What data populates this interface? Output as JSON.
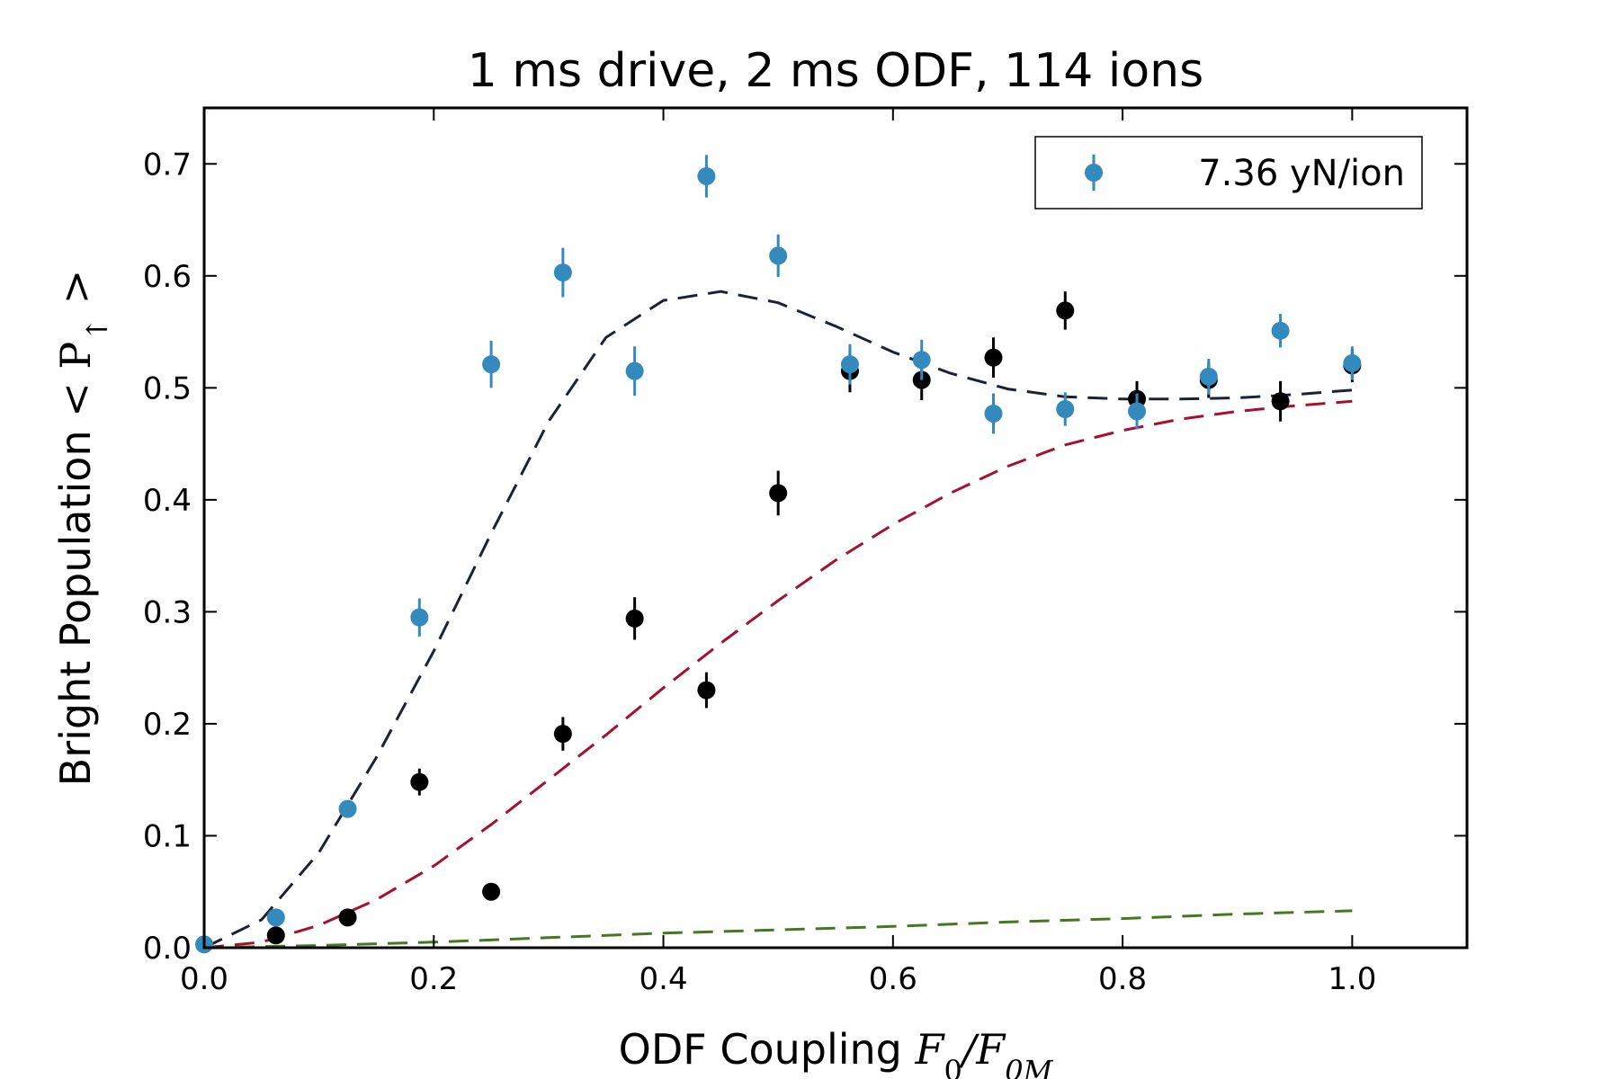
{
  "chart_data": {
    "type": "scatter",
    "title": "1 ms drive, 2 ms ODF, 114 ions",
    "xlabel": "ODF Coupling",
    "xlabel_math": "F0/F0M",
    "ylabel": "Bright Population",
    "ylabel_math": "< P↑ >",
    "xlim": [
      0.0,
      1.1
    ],
    "ylim": [
      0.0,
      0.75
    ],
    "x_ticks": [
      0.0,
      0.2,
      0.4,
      0.6,
      0.8,
      1.0
    ],
    "x_tick_labels": [
      "0.0",
      "0.2",
      "0.4",
      "0.6",
      "0.8",
      "1.0"
    ],
    "y_ticks": [
      0.0,
      0.1,
      0.2,
      0.3,
      0.4,
      0.5,
      0.6,
      0.7
    ],
    "y_tick_labels": [
      "0.0",
      "0.1",
      "0.2",
      "0.3",
      "0.4",
      "0.5",
      "0.6",
      "0.7"
    ],
    "grid": false,
    "legend_position": "top-right",
    "legend_label": "7.36 yN/ion",
    "series": [
      {
        "name": "7.36 yN/ion",
        "kind": "errorbar",
        "color": "#348abd",
        "x": [
          0.0,
          0.0625,
          0.125,
          0.1875,
          0.25,
          0.3125,
          0.375,
          0.4375,
          0.5,
          0.5625,
          0.625,
          0.6875,
          0.75,
          0.8125,
          0.875,
          0.9375,
          1.0
        ],
        "y": [
          0.003,
          0.027,
          0.124,
          0.295,
          0.521,
          0.603,
          0.515,
          0.689,
          0.618,
          0.521,
          0.525,
          0.477,
          0.481,
          0.479,
          0.51,
          0.551,
          0.522
        ],
        "yerr": [
          0.0,
          0.0,
          0.0,
          0.017,
          0.021,
          0.022,
          0.022,
          0.019,
          0.019,
          0.018,
          0.018,
          0.018,
          0.015,
          0.016,
          0.016,
          0.015,
          0.015
        ]
      },
      {
        "kind": "errorbar",
        "color": "#000000",
        "x": [
          0.0625,
          0.125,
          0.1875,
          0.25,
          0.3125,
          0.375,
          0.4375,
          0.5,
          0.5625,
          0.625,
          0.6875,
          0.75,
          0.8125,
          0.875,
          0.9375,
          1.0
        ],
        "y": [
          0.011,
          0.027,
          0.148,
          0.05,
          0.191,
          0.294,
          0.23,
          0.406,
          0.515,
          0.507,
          0.527,
          0.569,
          0.49,
          0.507,
          0.488,
          0.52
        ],
        "yerr": [
          0.0,
          0.0,
          0.012,
          0.0,
          0.015,
          0.019,
          0.016,
          0.02,
          0.019,
          0.018,
          0.018,
          0.017,
          0.016,
          0.016,
          0.018,
          0.015
        ]
      },
      {
        "kind": "dashed-line",
        "color": "#1a2233",
        "x": [
          0.0,
          0.05,
          0.1,
          0.15,
          0.2,
          0.25,
          0.3,
          0.35,
          0.4,
          0.45,
          0.5,
          0.55,
          0.6,
          0.65,
          0.7,
          0.75,
          0.8,
          0.85,
          0.9,
          0.95,
          1.0
        ],
        "y": [
          0.0,
          0.025,
          0.085,
          0.17,
          0.265,
          0.37,
          0.47,
          0.545,
          0.578,
          0.586,
          0.576,
          0.555,
          0.532,
          0.513,
          0.499,
          0.492,
          0.49,
          0.49,
          0.491,
          0.494,
          0.498
        ]
      },
      {
        "kind": "dashed-line",
        "color": "#a6112e",
        "x": [
          0.0,
          0.05,
          0.1,
          0.15,
          0.2,
          0.25,
          0.3,
          0.35,
          0.4,
          0.45,
          0.5,
          0.55,
          0.6,
          0.65,
          0.7,
          0.75,
          0.8,
          0.85,
          0.9,
          0.95,
          1.0
        ],
        "y": [
          0.0,
          0.005,
          0.02,
          0.043,
          0.073,
          0.11,
          0.15,
          0.19,
          0.232,
          0.272,
          0.31,
          0.346,
          0.378,
          0.406,
          0.43,
          0.449,
          0.462,
          0.472,
          0.479,
          0.484,
          0.488
        ]
      },
      {
        "kind": "dashed-line",
        "color": "#467821",
        "x": [
          0.0,
          0.1,
          0.2,
          0.3,
          0.4,
          0.5,
          0.6,
          0.7,
          0.8,
          0.9,
          1.0
        ],
        "y": [
          0.0,
          0.002,
          0.005,
          0.009,
          0.013,
          0.016,
          0.019,
          0.023,
          0.026,
          0.03,
          0.033
        ]
      }
    ]
  }
}
